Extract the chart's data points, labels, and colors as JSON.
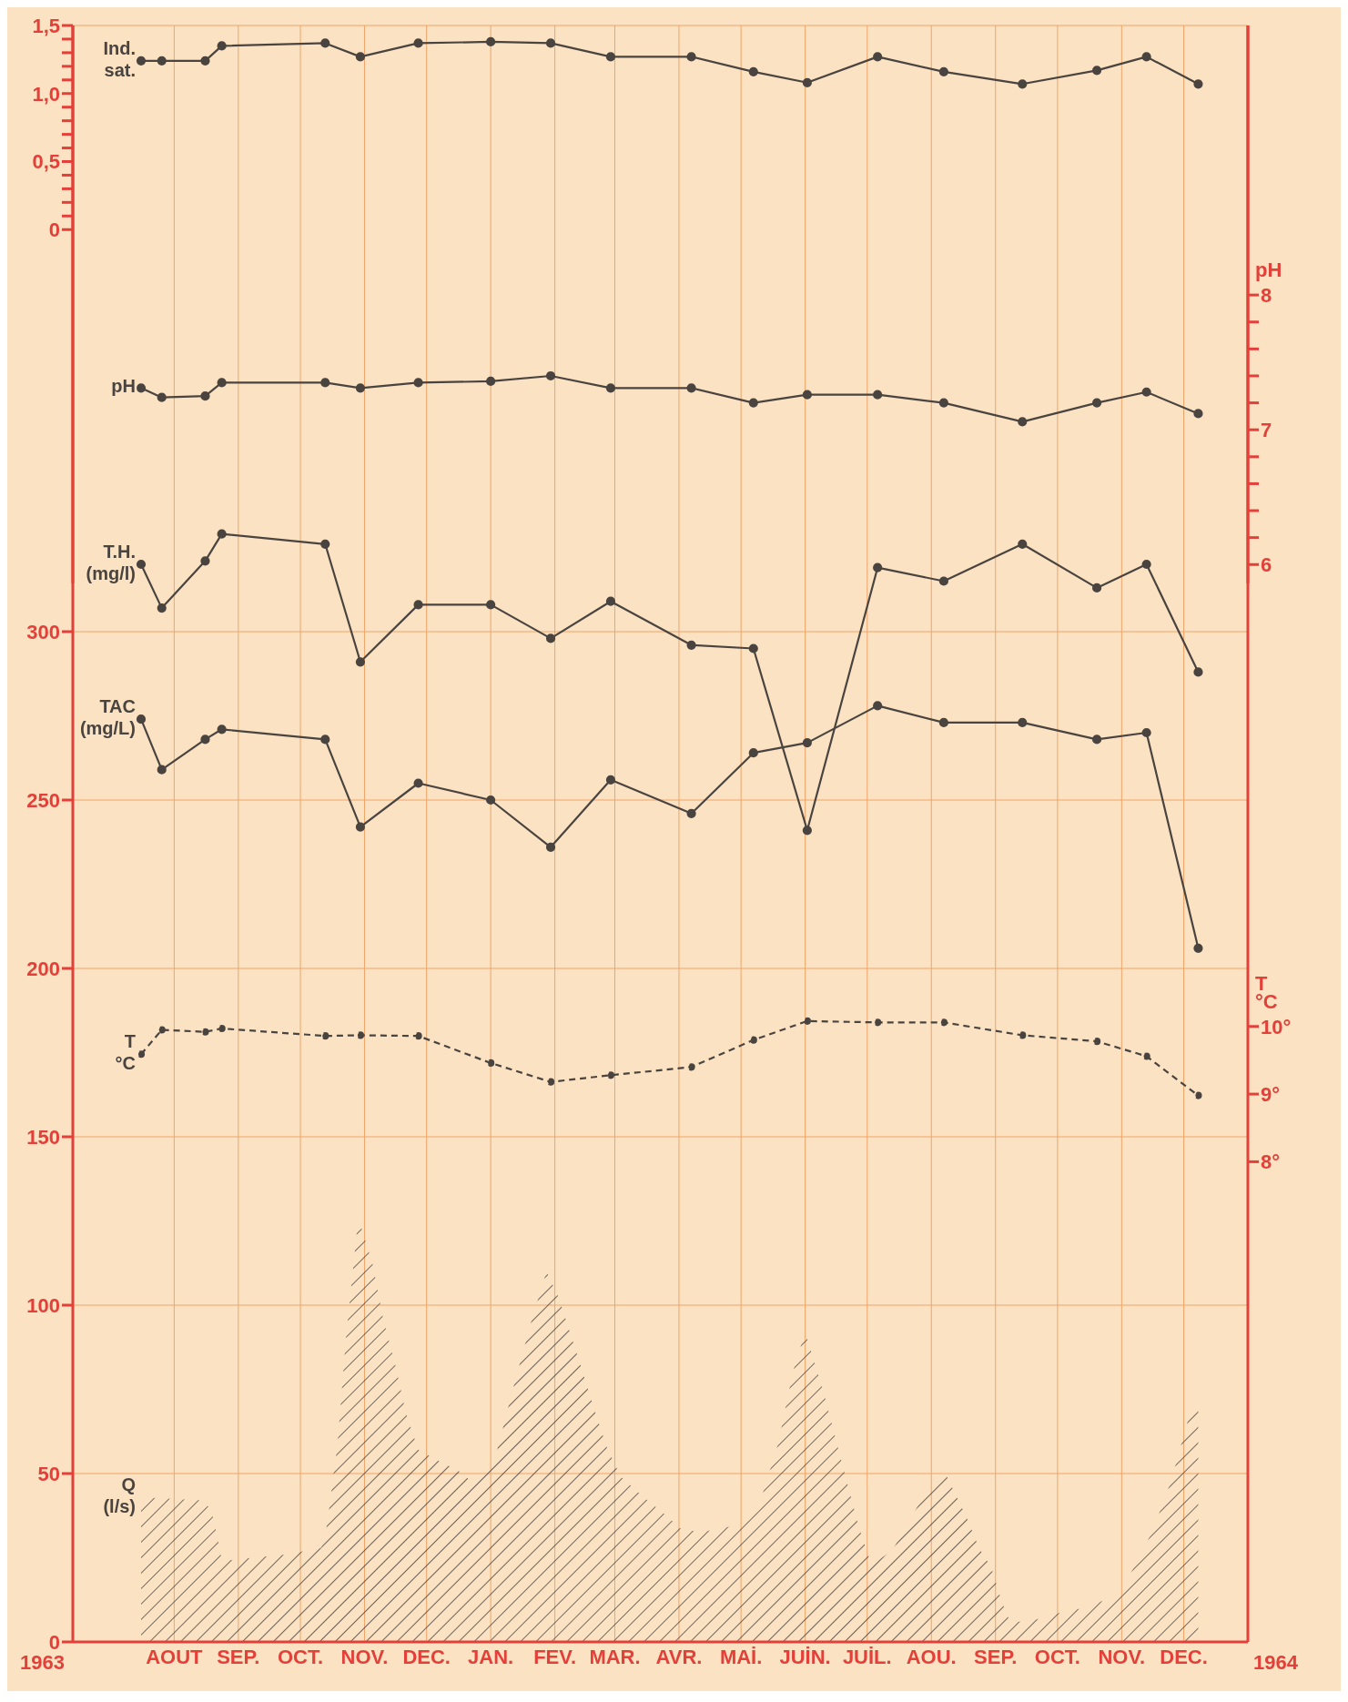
{
  "chart_data": [
    {
      "type": "line",
      "x": [
        "1963-07-30",
        "1963-08-09",
        "1963-08-30",
        "1963-09-07",
        "1963-10-27",
        "1963-11-13",
        "1963-12-11",
        "1964-01-15",
        "1964-02-13",
        "1964-03-13",
        "1964-04-21",
        "1964-05-21",
        "1964-06-16",
        "1964-07-20",
        "1964-08-21",
        "1964-09-28",
        "1964-11-03",
        "1964-11-27",
        "1964-12-22"
      ],
      "xlim": [
        "1963-06-27",
        "1965-01-15"
      ],
      "tick_labels": "y",
      "ylim": [
        -2.6,
        1.5
      ],
      "yticks": [
        0,
        {
          "value": 0.1,
          "label": null
        },
        {
          "value": 0.2,
          "label": null
        },
        {
          "value": 0.3,
          "label": null
        },
        {
          "value": 0.4,
          "label": null
        },
        {
          "value": 0.5,
          "label": "0,5"
        },
        {
          "value": 0.6,
          "label": null
        },
        {
          "value": 0.7,
          "label": null
        },
        {
          "value": 0.8,
          "label": null
        },
        {
          "value": 0.9,
          "label": null
        },
        {
          "value": 1,
          "label": "1,0"
        },
        {
          "value": 1.1,
          "label": null
        },
        {
          "value": 1.2,
          "label": null
        },
        {
          "value": 1.3,
          "label": null
        },
        {
          "value": 1.4,
          "label": null
        },
        {
          "value": 1.5,
          "label": "1,5"
        }
      ],
      "y2label": "pH",
      "y2lim": [
        5.86,
        10
      ],
      "y2ticks": [
        6,
        {
          "value": 6.2,
          "label": null
        },
        {
          "value": 6.4,
          "label": null
        },
        {
          "value": 6.6,
          "label": null
        },
        {
          "value": 6.8,
          "label": null
        },
        7,
        {
          "value": 7.2,
          "label": null
        },
        {
          "value": 7.4,
          "label": null
        },
        {
          "value": 7.6,
          "label": null
        },
        {
          "value": 7.8,
          "label": null
        },
        8
      ],
      "marker": "circle",
      "series": [
        {
          "name": "Ind. sat.",
          "color": "#4a4440",
          "values": [
            1.24,
            1.24,
            1.24,
            1.35,
            1.37,
            1.27,
            1.37,
            1.38,
            1.37,
            1.27,
            1.27,
            1.16,
            1.08,
            1.27,
            1.16,
            1.07,
            1.17,
            1.27,
            1.07
          ]
        },
        {
          "name": "pH",
          "color": "#4a4440",
          "axis": "y2",
          "values": [
            7.31,
            7.24,
            7.25,
            7.35,
            7.35,
            7.31,
            7.35,
            7.36,
            7.4,
            7.31,
            7.31,
            7.2,
            7.26,
            7.26,
            7.2,
            7.06,
            7.2,
            7.28,
            7.12
          ]
        }
      ]
    },
    {
      "type": "line",
      "x": [
        "1963-07-30",
        "1963-08-09",
        "1963-08-30",
        "1963-09-07",
        "1963-10-27",
        "1963-11-13",
        "1963-12-11",
        "1964-01-15",
        "1964-02-13",
        "1964-03-13",
        "1964-04-21",
        "1964-05-21",
        "1964-06-16",
        "1964-07-20",
        "1964-08-21",
        "1964-09-28",
        "1964-11-03",
        "1964-11-27",
        "1964-12-22"
      ],
      "xlim": [
        "1963-06-27",
        "1965-01-15"
      ],
      "xticks": [
        {
          "value": "1963-08-15",
          "label": "AOUT"
        },
        {
          "value": "1963-09-15",
          "label": "SEP."
        },
        {
          "value": "1963-10-15",
          "label": "OCT."
        },
        {
          "value": "1963-11-15",
          "label": "NOV."
        },
        {
          "value": "1963-12-15",
          "label": "DEC."
        },
        {
          "value": "1964-01-15",
          "label": "JAN."
        },
        {
          "value": "1964-02-15",
          "label": "FEV."
        },
        {
          "value": "1964-03-15",
          "label": "MAR."
        },
        {
          "value": "1964-04-15",
          "label": "AVR."
        },
        {
          "value": "1964-05-15",
          "label": "MAİ."
        },
        {
          "value": "1964-06-15",
          "label": "JUİN."
        },
        {
          "value": "1964-07-15",
          "label": "JUİL."
        },
        {
          "value": "1964-08-15",
          "label": "AOU."
        },
        {
          "value": "1964-09-15",
          "label": "SEP."
        },
        {
          "value": "1964-10-15",
          "label": "OCT."
        },
        {
          "value": "1964-11-15",
          "label": "NOV."
        },
        {
          "value": "1964-12-15",
          "label": "DEC."
        }
      ],
      "annotations": [
        "1963",
        "1964"
      ],
      "ylim": [
        0,
        480
      ],
      "yticks": [
        0,
        50,
        100,
        150,
        200,
        250,
        300
      ],
      "y2label": "T °C",
      "y2lim": [
        0.9,
        24.8
      ],
      "y2ticks": [
        {
          "value": 8,
          "label": "8°"
        },
        {
          "value": 9,
          "label": "9°"
        },
        {
          "value": 10,
          "label": "10°"
        }
      ],
      "grid": true,
      "marker": "circle",
      "series": [
        {
          "name": "T.H. (mg/l)",
          "color": "#4a4440",
          "values": [
            320,
            307,
            321,
            329,
            326,
            291,
            308,
            308,
            298,
            309,
            296,
            295,
            241,
            319,
            315,
            326,
            313,
            320,
            288
          ]
        },
        {
          "name": "TAC (mg/L)",
          "color": "#4a4440",
          "values": [
            274,
            259,
            268,
            271,
            268,
            242,
            255,
            250,
            236,
            256,
            246,
            264,
            267,
            278,
            273,
            273,
            268,
            270,
            206
          ]
        },
        {
          "name": "T °C",
          "color": "#4a4440",
          "axis": "y2",
          "line_style": "dashed",
          "values": [
            9.59,
            9.95,
            9.92,
            9.97,
            9.86,
            9.87,
            9.86,
            9.46,
            9.18,
            9.28,
            9.4,
            9.8,
            10.08,
            10.06,
            10.06,
            9.87,
            9.78,
            9.56,
            8.98
          ]
        },
        {
          "name": "Q (l/s)",
          "type": "area",
          "marker": "none",
          "color": "#4a4440",
          "x": [
            "1963-07-30",
            "1963-08-29",
            "1963-09-02",
            "1963-09-06",
            "1963-09-07",
            "1963-09-22",
            "1963-10-09",
            "1963-10-25",
            "1963-10-27",
            "1963-10-29",
            "1963-11-02",
            "1963-11-06",
            "1963-11-10",
            "1963-11-12",
            "1963-11-19",
            "1963-11-24",
            "1963-11-30",
            "1963-12-05",
            "1963-12-11",
            "1963-12-20",
            "1963-12-30",
            "1964-01-05",
            "1964-01-16",
            "1964-01-19",
            "1964-01-27",
            "1964-02-04",
            "1964-02-11",
            "1964-02-17",
            "1964-02-27",
            "1964-03-03",
            "1964-03-11",
            "1964-03-18",
            "1964-03-29",
            "1964-04-08",
            "1964-04-17",
            "1964-04-29",
            "1964-05-16",
            "1964-05-24",
            "1964-06-02",
            "1964-06-09",
            "1964-06-15",
            "1964-06-24",
            "1964-07-02",
            "1964-07-11",
            "1964-07-17",
            "1964-07-27",
            "1964-08-10",
            "1964-08-21",
            "1964-09-01",
            "1964-09-07",
            "1964-09-13",
            "1964-09-18",
            "1964-09-22",
            "1964-09-30",
            "1964-10-07",
            "1964-10-18",
            "1964-10-27",
            "1964-11-14",
            "1964-11-30",
            "1964-12-09",
            "1964-12-18",
            "1964-12-22"
          ],
          "values": [
            43,
            42,
            39,
            28,
            24,
            25,
            26,
            28,
            31,
            40,
            59,
            90,
            114,
            126,
            112,
            96,
            82,
            68,
            57,
            54,
            51,
            48,
            52,
            59,
            78,
            96,
            110,
            102,
            83,
            73,
            58,
            49,
            43,
            38,
            33,
            33,
            35,
            41,
            59,
            80,
            92,
            74,
            55,
            34,
            23,
            27,
            42,
            51,
            37,
            28,
            22,
            12,
            6,
            6,
            7,
            9,
            10,
            14,
            33,
            48,
            68,
            71
          ]
        }
      ]
    }
  ]
}
